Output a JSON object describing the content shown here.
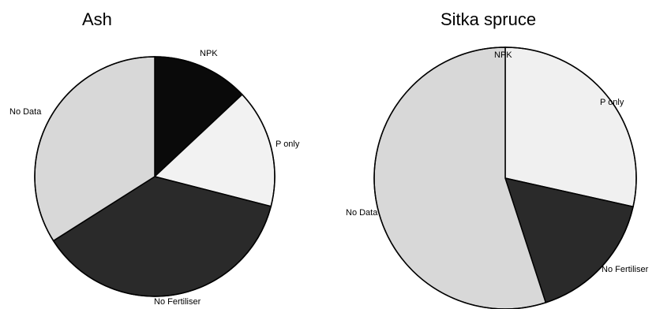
{
  "chart_data": [
    {
      "type": "pie",
      "title": "Ash",
      "slices": [
        {
          "label": "NPK",
          "value": 13,
          "color": "#0a0a0a"
        },
        {
          "label": "P only",
          "value": 16,
          "color": "#f2f2f2"
        },
        {
          "label": "No Fertiliser",
          "value": 37,
          "color": "#2a2a2a"
        },
        {
          "label": "No Data",
          "value": 34,
          "color": "#d8d8d8"
        }
      ],
      "start": "top",
      "direction": "clockwise"
    },
    {
      "type": "pie",
      "title": "Sitka spruce",
      "slices": [
        {
          "label": "NPK",
          "value": 0,
          "color": "#0a0a0a"
        },
        {
          "label": "P only",
          "value": 28.5,
          "color": "#f0f0f0"
        },
        {
          "label": "No Fertiliser",
          "value": 16.5,
          "color": "#2a2a2a"
        },
        {
          "label": "No Data",
          "value": 55,
          "color": "#d8d8d8"
        }
      ],
      "start": "top",
      "direction": "clockwise"
    }
  ]
}
